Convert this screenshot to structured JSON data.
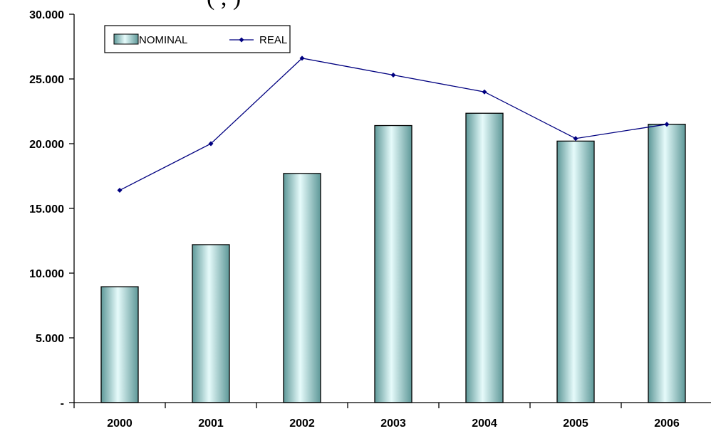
{
  "chart_data": {
    "type": "bar",
    "title": "(  ,          )",
    "categories": [
      "2000",
      "2001",
      "2002",
      "2003",
      "2004",
      "2005",
      "2006"
    ],
    "ylim": [
      0,
      30000
    ],
    "yticks": [
      0,
      5000,
      10000,
      15000,
      20000,
      25000,
      30000
    ],
    "ytick_labels": [
      "-",
      "5.000",
      "10.000",
      "15.000",
      "20.000",
      "25.000",
      "30.000"
    ],
    "legend_position": "top-left",
    "grid": false,
    "series": [
      {
        "name": "NOMINAL",
        "kind": "bar",
        "color": "#9fd4d4",
        "values": [
          8950,
          12200,
          17700,
          21400,
          22350,
          20200,
          21500
        ]
      },
      {
        "name": "REAL",
        "kind": "line",
        "color": "#000080",
        "values": [
          16400,
          20000,
          26600,
          25300,
          24000,
          20400,
          21500
        ]
      }
    ]
  }
}
